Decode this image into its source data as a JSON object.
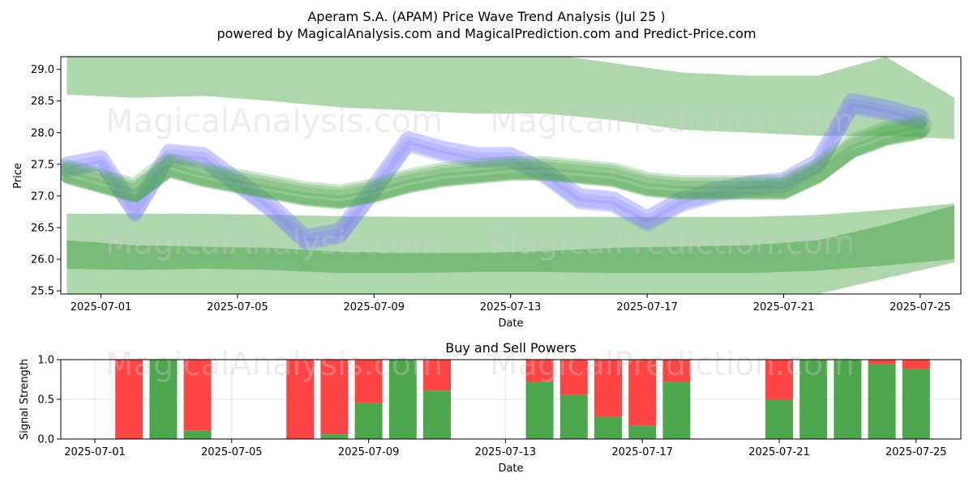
{
  "title_line1": "Aperam S.A. (APAM) Price Wave Trend Analysis (Jul 25 )",
  "title_line2": "powered by MagicalAnalysis.com and MagicalPrediction.com and Predict-Price.com",
  "watermarks": [
    "MagicalAnalysis.com",
    "MagicalPrediction.com"
  ],
  "colors": {
    "buy": "#4ca64c",
    "sell": "#ff4444",
    "band": "#4ca64c",
    "wave": "#7b7bff"
  },
  "chart_data": [
    {
      "type": "area",
      "xlabel": "Date",
      "ylabel": "Price",
      "x_start": "2025-06-30",
      "ylim": [
        25.45,
        29.2
      ],
      "xticks": [
        "2025-07-01",
        "2025-07-05",
        "2025-07-09",
        "2025-07-13",
        "2025-07-17",
        "2025-07-21",
        "2025-07-25"
      ],
      "yticks": [
        "25.5",
        "26.0",
        "26.5",
        "27.0",
        "27.5",
        "28.0",
        "28.5",
        "29.0"
      ],
      "series": [
        {
          "kind": "upper-band",
          "x": [
            "2025-06-30",
            "2025-07-02",
            "2025-07-04",
            "2025-07-06",
            "2025-07-08",
            "2025-07-10",
            "2025-07-12",
            "2025-07-14",
            "2025-07-16",
            "2025-07-18",
            "2025-07-20",
            "2025-07-22",
            "2025-07-24",
            "2025-07-26"
          ],
          "upper": [
            29.25,
            29.3,
            29.3,
            29.3,
            29.3,
            29.3,
            29.3,
            29.25,
            29.1,
            28.95,
            28.9,
            28.9,
            29.2,
            28.55
          ],
          "lower": [
            28.6,
            28.55,
            28.58,
            28.5,
            28.4,
            28.35,
            28.3,
            28.3,
            28.2,
            28.05,
            28.0,
            27.95,
            27.95,
            27.9
          ]
        },
        {
          "kind": "lower-band-outer",
          "x": [
            "2025-06-30",
            "2025-07-02",
            "2025-07-04",
            "2025-07-06",
            "2025-07-08",
            "2025-07-10",
            "2025-07-12",
            "2025-07-14",
            "2025-07-16",
            "2025-07-18",
            "2025-07-20",
            "2025-07-22",
            "2025-07-24",
            "2025-07-26"
          ],
          "upper": [
            26.72,
            26.72,
            26.72,
            26.7,
            26.68,
            26.67,
            26.67,
            26.67,
            26.67,
            26.67,
            26.67,
            26.7,
            26.78,
            26.88
          ],
          "lower": [
            25.4,
            25.35,
            25.35,
            25.35,
            25.35,
            25.35,
            25.35,
            25.35,
            25.35,
            25.35,
            25.35,
            25.45,
            25.7,
            25.95
          ]
        },
        {
          "kind": "lower-band-inner",
          "x": [
            "2025-06-30",
            "2025-07-02",
            "2025-07-04",
            "2025-07-06",
            "2025-07-08",
            "2025-07-10",
            "2025-07-12",
            "2025-07-14",
            "2025-07-16",
            "2025-07-18",
            "2025-07-20",
            "2025-07-22",
            "2025-07-24",
            "2025-07-26"
          ],
          "upper": [
            26.3,
            26.22,
            26.2,
            26.18,
            26.12,
            26.1,
            26.1,
            26.13,
            26.18,
            26.2,
            26.22,
            26.3,
            26.55,
            26.85
          ],
          "lower": [
            25.85,
            25.83,
            25.85,
            25.83,
            25.78,
            25.78,
            25.8,
            25.8,
            25.78,
            25.78,
            25.78,
            25.82,
            25.9,
            26.0
          ]
        },
        {
          "kind": "price-wave-blue",
          "x": [
            "2025-06-30",
            "2025-07-01",
            "2025-07-02",
            "2025-07-03",
            "2025-07-04",
            "2025-07-05",
            "2025-07-06",
            "2025-07-07",
            "2025-07-08",
            "2025-07-09",
            "2025-07-10",
            "2025-07-11",
            "2025-07-12",
            "2025-07-13",
            "2025-07-14",
            "2025-07-15",
            "2025-07-16",
            "2025-07-17",
            "2025-07-18",
            "2025-07-19",
            "2025-07-20",
            "2025-07-21",
            "2025-07-22",
            "2025-07-23",
            "2025-07-24",
            "2025-07-25"
          ],
          "values": [
            27.45,
            27.55,
            26.75,
            27.65,
            27.6,
            27.2,
            26.8,
            26.3,
            26.4,
            27.1,
            27.85,
            27.7,
            27.6,
            27.6,
            27.35,
            26.95,
            26.9,
            26.6,
            26.9,
            27.05,
            27.15,
            27.2,
            27.5,
            28.45,
            28.35,
            28.2
          ]
        },
        {
          "kind": "price-wave-green",
          "x": [
            "2025-06-30",
            "2025-07-01",
            "2025-07-02",
            "2025-07-03",
            "2025-07-04",
            "2025-07-05",
            "2025-07-06",
            "2025-07-07",
            "2025-07-08",
            "2025-07-09",
            "2025-07-10",
            "2025-07-11",
            "2025-07-12",
            "2025-07-13",
            "2025-07-14",
            "2025-07-15",
            "2025-07-16",
            "2025-07-17",
            "2025-07-18",
            "2025-07-19",
            "2025-07-20",
            "2025-07-21",
            "2025-07-22",
            "2025-07-23",
            "2025-07-24",
            "2025-07-25"
          ],
          "values": [
            27.35,
            27.2,
            27.05,
            27.45,
            27.3,
            27.2,
            27.1,
            27.0,
            26.95,
            27.05,
            27.2,
            27.3,
            27.35,
            27.4,
            27.4,
            27.35,
            27.3,
            27.15,
            27.1,
            27.1,
            27.1,
            27.1,
            27.35,
            27.75,
            27.95,
            28.05
          ]
        }
      ]
    },
    {
      "type": "bar",
      "title": "Buy and Sell Powers",
      "xlabel": "Date",
      "ylabel": "Signal Strength",
      "ylim": [
        0,
        1.0
      ],
      "yticks": [
        "0.0",
        "0.5",
        "1.0"
      ],
      "xticks": [
        "2025-07-01",
        "2025-07-05",
        "2025-07-09",
        "2025-07-13",
        "2025-07-17",
        "2025-07-21",
        "2025-07-25"
      ],
      "categories": [
        "2025-07-02",
        "2025-07-03",
        "2025-07-04",
        "2025-07-07",
        "2025-07-08",
        "2025-07-09",
        "2025-07-10",
        "2025-07-11",
        "2025-07-14",
        "2025-07-15",
        "2025-07-16",
        "2025-07-17",
        "2025-07-18",
        "2025-07-21",
        "2025-07-22",
        "2025-07-23",
        "2025-07-24",
        "2025-07-25"
      ],
      "series": [
        {
          "name": "buy",
          "values": [
            0.0,
            1.0,
            0.11,
            0.0,
            0.06,
            0.45,
            1.0,
            0.61,
            0.72,
            0.56,
            0.28,
            0.17,
            0.72,
            0.5,
            1.0,
            1.0,
            0.94,
            0.88
          ]
        },
        {
          "name": "sell",
          "values": [
            1.0,
            0.0,
            0.89,
            1.0,
            0.94,
            0.55,
            0.0,
            0.39,
            0.28,
            0.44,
            0.72,
            0.83,
            0.28,
            0.5,
            0.0,
            0.0,
            0.06,
            0.12
          ]
        }
      ]
    }
  ]
}
